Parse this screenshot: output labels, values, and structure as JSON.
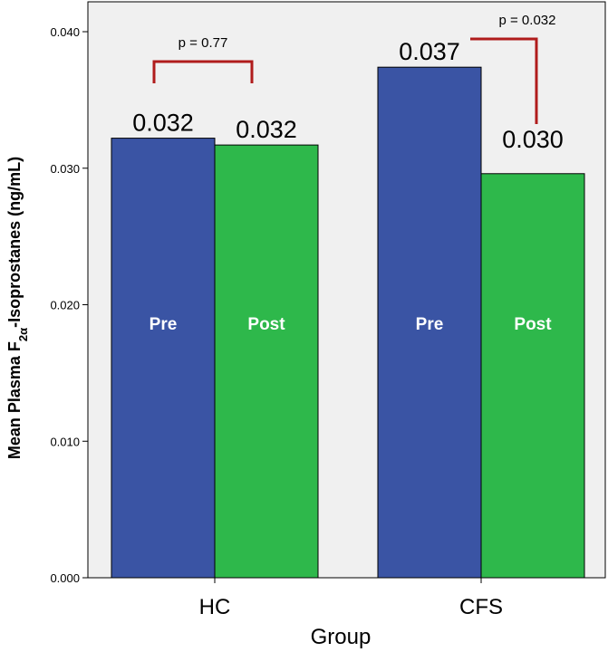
{
  "chart_data": {
    "type": "bar",
    "title": "",
    "xlabel": "Group",
    "ylabel": "Mean Plasma F2α-Isoprostanes (ng/mL)",
    "ylabel_parts": {
      "main": "Mean Plasma F",
      "sub": "2α",
      "rest": "-Isoprostanes (ng/mL)"
    },
    "categories": [
      "HC",
      "CFS"
    ],
    "ylim": [
      0,
      0.04
    ],
    "yticks": [
      "0.000",
      "0.010",
      "0.020",
      "0.030",
      "0.040"
    ],
    "series": [
      {
        "name": "Pre",
        "values": [
          0.0322,
          0.0374
        ],
        "labels": [
          "0.032",
          "0.037"
        ],
        "color": "#3a54a4"
      },
      {
        "name": "Post",
        "values": [
          0.0317,
          0.0296
        ],
        "labels": [
          "0.032",
          "0.030"
        ],
        "color": "#2eb84b"
      }
    ],
    "annotations": [
      {
        "group": "HC",
        "text": "p = 0.77"
      },
      {
        "group": "CFS",
        "text": "p = 0.032"
      }
    ],
    "colors": {
      "plot_background": "#f0f0f0",
      "bracket": "#b01c1c"
    }
  }
}
